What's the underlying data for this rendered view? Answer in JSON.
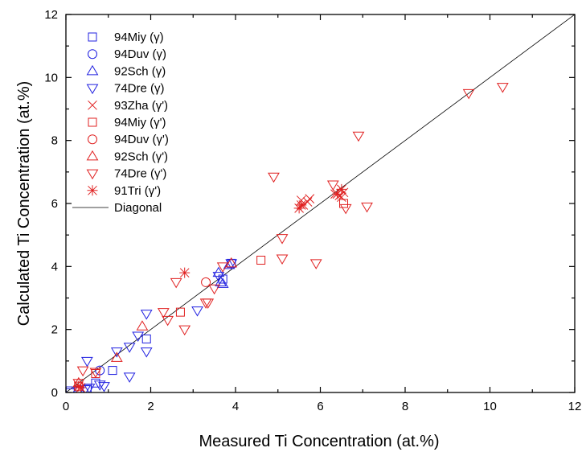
{
  "chart_data": {
    "type": "scatter",
    "title": "",
    "xlabel": "Measured Ti Concentration (at.%)",
    "ylabel": "Calculated Ti Concentration (at.%)",
    "xlim": [
      0,
      12
    ],
    "ylim": [
      0,
      12
    ],
    "x_ticks": [
      "0",
      "2",
      "4",
      "6",
      "8",
      "10",
      "12"
    ],
    "y_ticks": [
      "0",
      "2",
      "4",
      "6",
      "8",
      "10",
      "12"
    ],
    "grid": false,
    "legend_position": "top-left",
    "series": [
      {
        "name": "94Miy (γ)",
        "marker": "square",
        "color": "#2020e0",
        "points": [
          [
            0.1,
            0.05
          ],
          [
            0.5,
            0.1
          ],
          [
            0.7,
            0.3
          ],
          [
            1.1,
            0.7
          ],
          [
            1.9,
            1.7
          ],
          [
            3.7,
            3.6
          ],
          [
            3.9,
            4.1
          ]
        ]
      },
      {
        "name": "94Duv (γ)",
        "marker": "circle",
        "color": "#2020e0",
        "points": [
          [
            0.8,
            0.7
          ]
        ]
      },
      {
        "name": "92Sch (γ)",
        "marker": "triangle-up",
        "color": "#2020e0",
        "points": [
          [
            3.6,
            3.8
          ],
          [
            3.65,
            3.5
          ],
          [
            3.7,
            3.45
          ],
          [
            3.85,
            4.05
          ]
        ]
      },
      {
        "name": "74Dre (γ)",
        "marker": "triangle-down",
        "color": "#2020e0",
        "points": [
          [
            0.1,
            0.0
          ],
          [
            0.3,
            0.05
          ],
          [
            0.45,
            0.1
          ],
          [
            0.5,
            1.0
          ],
          [
            0.55,
            0.15
          ],
          [
            0.8,
            0.25
          ],
          [
            0.9,
            0.2
          ],
          [
            1.2,
            1.3
          ],
          [
            1.5,
            1.45
          ],
          [
            1.5,
            0.5
          ],
          [
            1.7,
            1.8
          ],
          [
            1.9,
            2.5
          ],
          [
            1.9,
            1.3
          ],
          [
            3.1,
            2.6
          ],
          [
            3.6,
            3.7
          ],
          [
            3.9,
            4.1
          ]
        ]
      },
      {
        "name": "93Zha (γ')",
        "marker": "x",
        "color": "#e02020",
        "points": [
          [
            5.55,
            6.1
          ],
          [
            5.6,
            5.95
          ],
          [
            5.7,
            6.05
          ],
          [
            5.75,
            6.15
          ],
          [
            6.35,
            6.3
          ],
          [
            6.45,
            6.25
          ],
          [
            6.5,
            6.2
          ],
          [
            6.55,
            6.35
          ]
        ]
      },
      {
        "name": "94Miy (γ')",
        "marker": "square",
        "color": "#e02020",
        "points": [
          [
            0.3,
            0.2
          ],
          [
            0.7,
            0.6
          ],
          [
            2.7,
            2.55
          ],
          [
            4.6,
            4.2
          ],
          [
            6.55,
            6.0
          ]
        ]
      },
      {
        "name": "94Duv (γ')",
        "marker": "circle",
        "color": "#e02020",
        "points": [
          [
            3.3,
            3.5
          ]
        ]
      },
      {
        "name": "92Sch (γ')",
        "marker": "triangle-up",
        "color": "#e02020",
        "points": [
          [
            0.3,
            0.3
          ],
          [
            1.2,
            1.1
          ],
          [
            1.8,
            2.1
          ],
          [
            3.9,
            4.1
          ]
        ]
      },
      {
        "name": "74Dre (γ')",
        "marker": "triangle-down",
        "color": "#e02020",
        "points": [
          [
            0.3,
            0.3
          ],
          [
            0.4,
            0.7
          ],
          [
            0.7,
            0.65
          ],
          [
            2.3,
            2.55
          ],
          [
            2.4,
            2.3
          ],
          [
            2.6,
            3.5
          ],
          [
            2.8,
            2.0
          ],
          [
            3.3,
            2.85
          ],
          [
            3.35,
            2.85
          ],
          [
            3.5,
            3.3
          ],
          [
            3.7,
            4.0
          ],
          [
            4.9,
            6.85
          ],
          [
            5.1,
            4.9
          ],
          [
            5.1,
            4.25
          ],
          [
            5.9,
            4.1
          ],
          [
            6.3,
            6.6
          ],
          [
            6.6,
            5.85
          ],
          [
            7.1,
            5.9
          ],
          [
            6.9,
            8.15
          ],
          [
            9.5,
            9.5
          ],
          [
            10.3,
            9.7
          ]
        ]
      },
      {
        "name": "91Tri (γ')",
        "marker": "asterisk",
        "color": "#e02020",
        "points": [
          [
            0.3,
            0.2
          ],
          [
            0.35,
            0.15
          ],
          [
            2.8,
            3.8
          ],
          [
            5.5,
            5.85
          ],
          [
            5.55,
            5.95
          ],
          [
            6.4,
            6.3
          ],
          [
            6.5,
            6.45
          ]
        ]
      }
    ],
    "reference_line": {
      "name": "Diagonal",
      "color": "#000000",
      "points": [
        [
          0,
          0
        ],
        [
          12,
          12
        ]
      ]
    }
  }
}
